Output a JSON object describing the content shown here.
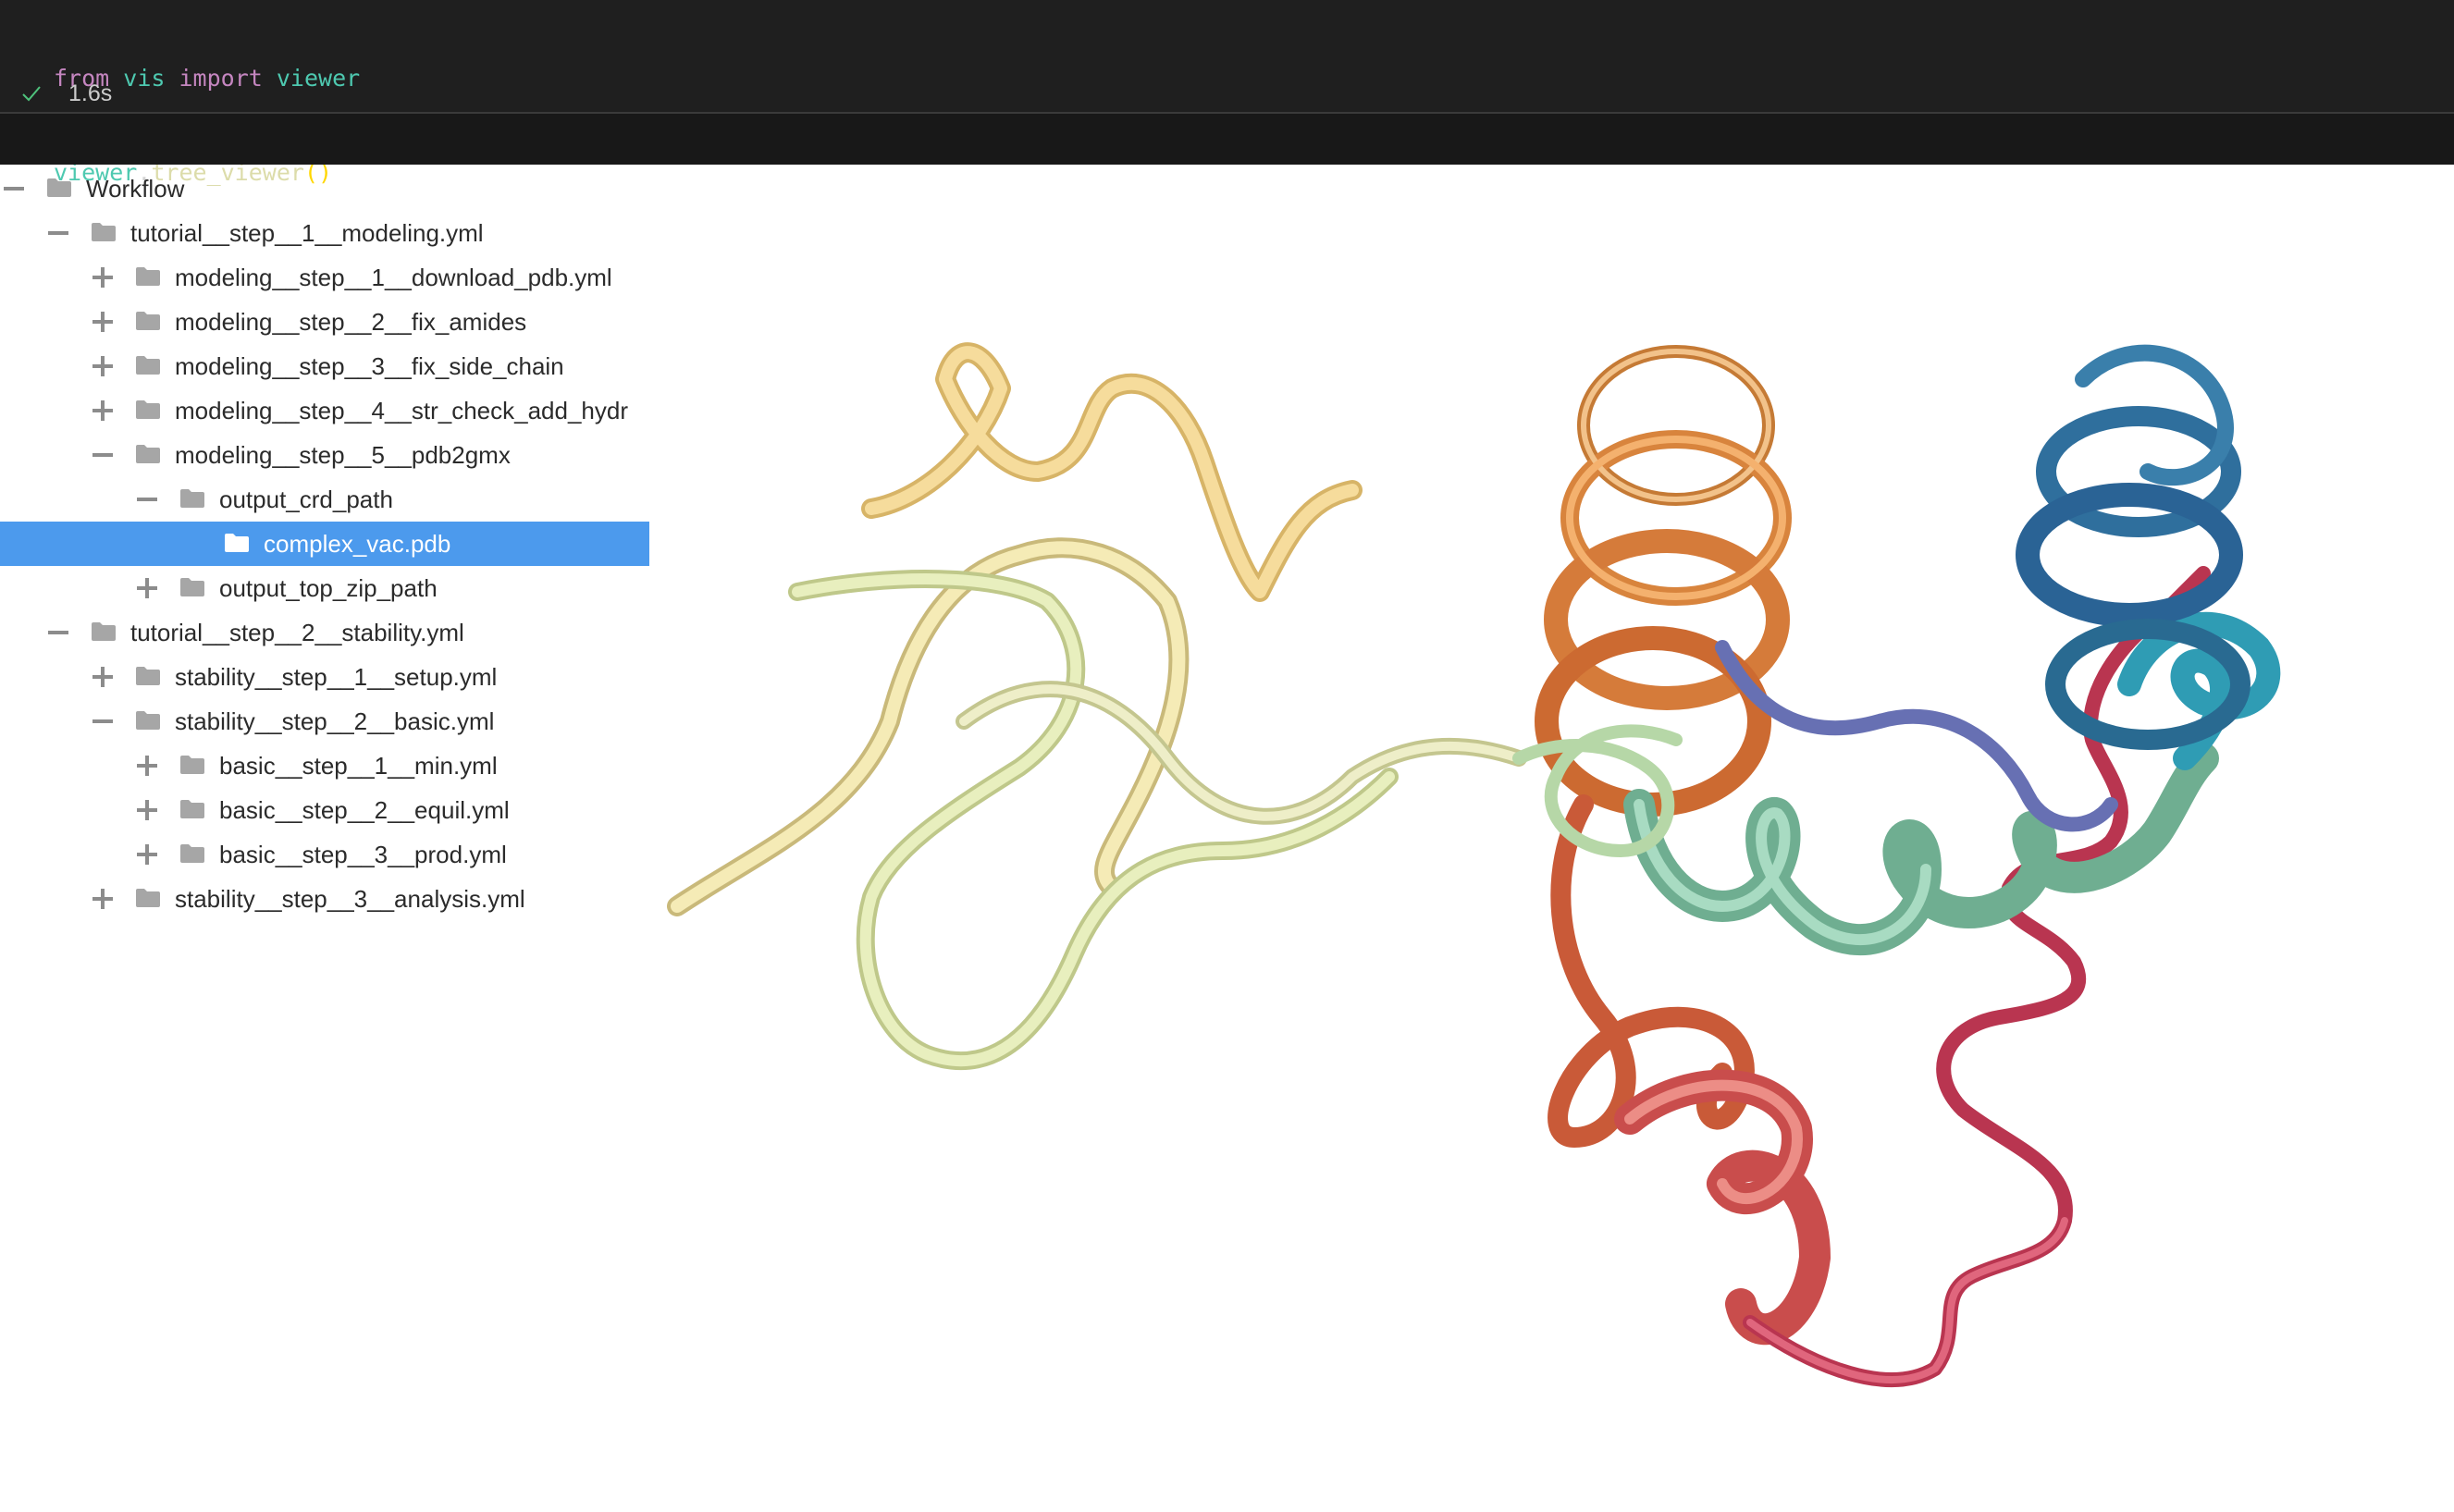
{
  "cell": {
    "code_line1": {
      "kw1": "from",
      "mod1": "vis",
      "kw2": "import",
      "mod2": "viewer"
    },
    "code_line2": {
      "obj": "viewer",
      "dot": ".",
      "fn": "tree_viewer",
      "parens": "()"
    },
    "status_icon": "check-icon",
    "duration": "1.6s"
  },
  "tree": {
    "nodes": [
      {
        "label": "Workflow",
        "toggle": "minus",
        "depth": 0
      },
      {
        "label": "tutorial__step__1__modeling.yml",
        "toggle": "minus",
        "depth": 1
      },
      {
        "label": "modeling__step__1__download_pdb.yml",
        "toggle": "plus",
        "depth": 2
      },
      {
        "label": "modeling__step__2__fix_amides",
        "toggle": "plus",
        "depth": 2
      },
      {
        "label": "modeling__step__3__fix_side_chain",
        "toggle": "plus",
        "depth": 2
      },
      {
        "label": "modeling__step__4__str_check_add_hydr",
        "toggle": "plus",
        "depth": 2
      },
      {
        "label": "modeling__step__5__pdb2gmx",
        "toggle": "minus",
        "depth": 2
      },
      {
        "label": "output_crd_path",
        "toggle": "minus",
        "depth": 3
      },
      {
        "label": "complex_vac.pdb",
        "toggle": "none",
        "depth": 4,
        "selected": true
      },
      {
        "label": "output_top_zip_path",
        "toggle": "plus",
        "depth": 3
      },
      {
        "label": "tutorial__step__2__stability.yml",
        "toggle": "minus",
        "depth": 1
      },
      {
        "label": "stability__step__1__setup.yml",
        "toggle": "plus",
        "depth": 2
      },
      {
        "label": "stability__step__2__basic.yml",
        "toggle": "minus",
        "depth": 2
      },
      {
        "label": "basic__step__1__min.yml",
        "toggle": "plus",
        "depth": 3
      },
      {
        "label": "basic__step__2__equil.yml",
        "toggle": "plus",
        "depth": 3
      },
      {
        "label": "basic__step__3__prod.yml",
        "toggle": "plus",
        "depth": 3
      },
      {
        "label": "stability__step__3__analysis.yml",
        "toggle": "plus",
        "depth": 2
      }
    ],
    "folder_icon": "folder-icon",
    "folder_color": "#a6a6a6",
    "selected_color": "#4c9aed"
  },
  "viewer": {
    "content": "protein ribbon cartoon",
    "palette": [
      "#f3e3a0",
      "#f5cf85",
      "#e9a25f",
      "#d9743e",
      "#c8494a",
      "#b8304f",
      "#7ec4a5",
      "#3aa3b8",
      "#2d6a9e",
      "#6f73b8",
      "#cfe0a8"
    ]
  }
}
